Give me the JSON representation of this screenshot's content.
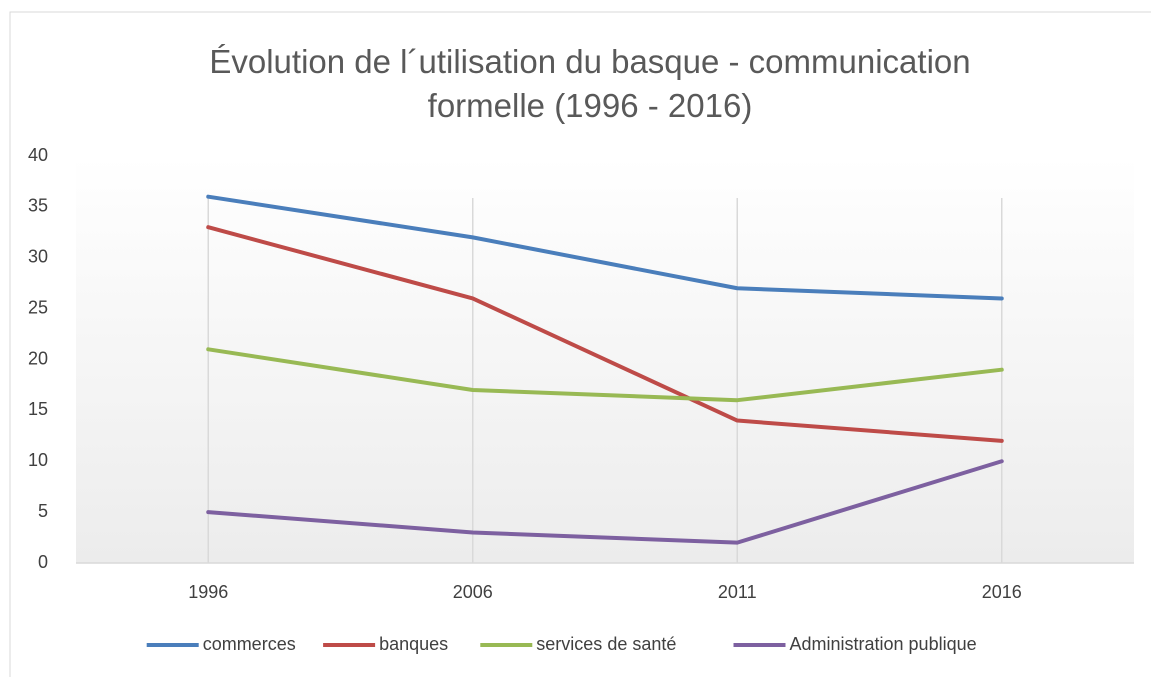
{
  "chart_data": {
    "type": "line",
    "title": "Évolution de l´utilisation du basque - communication formelle (1996 - 2016)",
    "categories": [
      "1996",
      "2006",
      "2011",
      "2016"
    ],
    "series": [
      {
        "name": "commerces",
        "color": "#4a7ebb",
        "values": [
          36,
          32,
          27,
          26
        ]
      },
      {
        "name": "banques",
        "color": "#be4b48",
        "values": [
          33,
          26,
          14,
          12
        ]
      },
      {
        "name": "services de santé",
        "color": "#98b954",
        "values": [
          21,
          17,
          16,
          19
        ]
      },
      {
        "name": "Administration publique",
        "color": "#7d60a0",
        "values": [
          5,
          3,
          2,
          10
        ]
      }
    ],
    "ylim": [
      0,
      40
    ],
    "yticks": [
      0,
      5,
      10,
      15,
      20,
      25,
      30,
      35,
      40
    ],
    "grid": true,
    "legend": "bottom"
  }
}
